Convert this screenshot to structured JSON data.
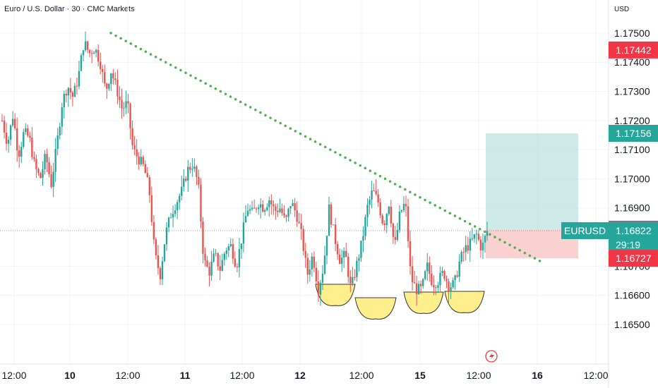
{
  "header": {
    "title": "Euro / U.S. Dollar · 30 · CMC Markets",
    "currency": "USD"
  },
  "colors": {
    "up": "#26a69a",
    "down": "#ef5350",
    "trendline": "#4caf50",
    "target_zone": "#b2dfdb",
    "stop_zone": "#f8c6c6",
    "pattern_fill": "#ffee80",
    "ask_badge": "#f23645",
    "symbol_badge": "#26a69a",
    "price_badge": "#787b86"
  },
  "chart_data": {
    "type": "candlestick",
    "symbol": "EURUSD",
    "timeframe": "30",
    "ylim": [
      1.1642,
      1.1757
    ],
    "y_ticks": [
      "1.17500",
      "1.17400",
      "1.17300",
      "1.17200",
      "1.17100",
      "1.17000",
      "1.16900",
      "1.16700",
      "1.16600",
      "1.16500"
    ],
    "x_ticks": [
      {
        "label": "12:00",
        "major": false
      },
      {
        "label": "10",
        "major": true
      },
      {
        "label": "12:00",
        "major": false
      },
      {
        "label": "11",
        "major": true
      },
      {
        "label": "12:00",
        "major": false
      },
      {
        "label": "12",
        "major": true
      },
      {
        "label": "12:00",
        "major": false
      },
      {
        "label": "15",
        "major": true
      },
      {
        "label": "12:00",
        "major": false
      },
      {
        "label": "16",
        "major": true
      },
      {
        "label": "12:00",
        "major": false
      }
    ],
    "price_labels": [
      {
        "value": "1.17442",
        "price": 1.17442,
        "kind": "ask"
      },
      {
        "value": "1.17156",
        "price": 1.17156,
        "kind": "target"
      },
      {
        "value": "1.16827",
        "price": 1.16827,
        "kind": "prev"
      },
      {
        "value": "1.16822",
        "price": 1.16822,
        "kind": "last"
      },
      {
        "value": "1.16727",
        "price": 1.16727,
        "kind": "stop"
      }
    ],
    "symbol_badge": {
      "symbol": "EURUSD",
      "countdown": "29:19"
    },
    "trendline": {
      "start_price": 1.175,
      "end_price": 1.16715
    },
    "position": {
      "entry": 1.16827,
      "target": 1.17156,
      "stop": 1.16727
    },
    "pattern": "four rounded bottoms (highlighted)",
    "series_path": [
      1.172,
      1.1712,
      1.1722,
      1.1708,
      1.1716,
      1.1714,
      1.1704,
      1.17,
      1.1708,
      1.1698,
      1.1711,
      1.1726,
      1.1732,
      1.1728,
      1.1735,
      1.1747,
      1.1743,
      1.1745,
      1.174,
      1.173,
      1.1737,
      1.1731,
      1.1724,
      1.1726,
      1.171,
      1.1707,
      1.1704,
      1.1696,
      1.1674,
      1.1667,
      1.1681,
      1.1688,
      1.1692,
      1.1696,
      1.1703,
      1.1705,
      1.1698,
      1.1672,
      1.1668,
      1.1674,
      1.1669,
      1.1676,
      1.1677,
      1.167,
      1.168,
      1.169,
      1.1688,
      1.1692,
      1.169,
      1.1693,
      1.1689,
      1.169,
      1.1685,
      1.1692,
      1.1688,
      1.168,
      1.1667,
      1.1674,
      1.1662,
      1.167,
      1.169,
      1.168,
      1.1672,
      1.1674,
      1.1662,
      1.167,
      1.1678,
      1.169,
      1.1696,
      1.1692,
      1.1684,
      1.1692,
      1.1676,
      1.1688,
      1.1692,
      1.1666,
      1.1662,
      1.1662,
      1.167,
      1.1664,
      1.1665,
      1.1668,
      1.1663,
      1.1664,
      1.1672,
      1.1676,
      1.1678,
      1.1681,
      1.1676,
      1.1682
    ]
  }
}
